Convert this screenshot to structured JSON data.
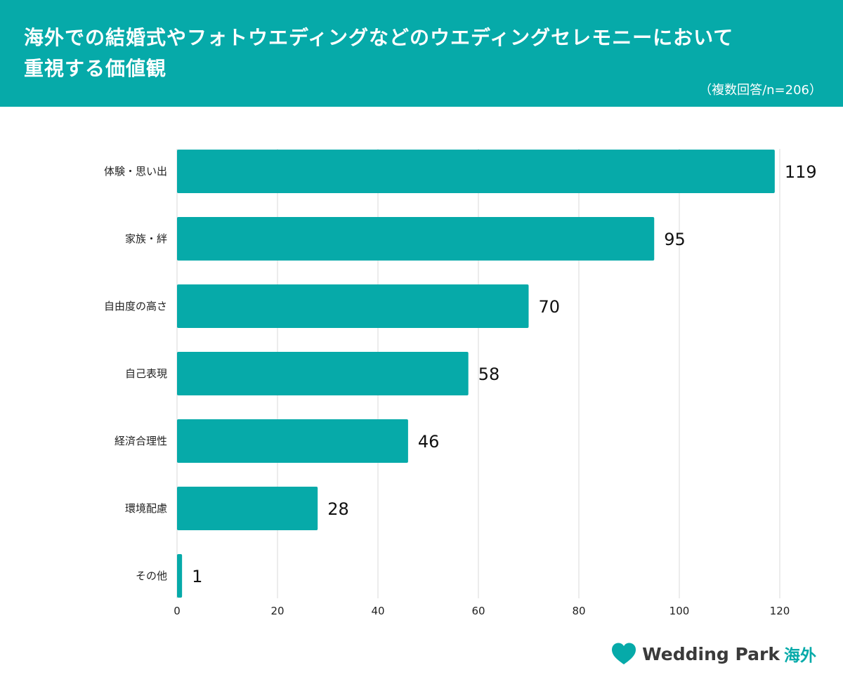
{
  "header": {
    "title_line1": "海外での結婚式やフォトウエディングなどのウエディングセレモニーにおいて",
    "title_line2": "重視する価値観",
    "note": "（複数回答/n=206）"
  },
  "colors": {
    "accent": "#06aaa9",
    "bar": "#06aaa9",
    "grid": "#d9d9d9"
  },
  "chart_data": {
    "type": "bar",
    "orientation": "horizontal",
    "categories": [
      "体験・思い出",
      "家族・絆",
      "自由度の高さ",
      "自己表現",
      "経済合理性",
      "環境配慮",
      "その他"
    ],
    "values": [
      119,
      95,
      70,
      58,
      46,
      28,
      1
    ],
    "xlim": [
      0,
      120
    ],
    "xticks": [
      0,
      20,
      40,
      60,
      80,
      100,
      120
    ],
    "grid": true,
    "legend": false
  },
  "logo": {
    "icon": "heart-icon",
    "text": "Wedding Park",
    "sub": "海外"
  }
}
